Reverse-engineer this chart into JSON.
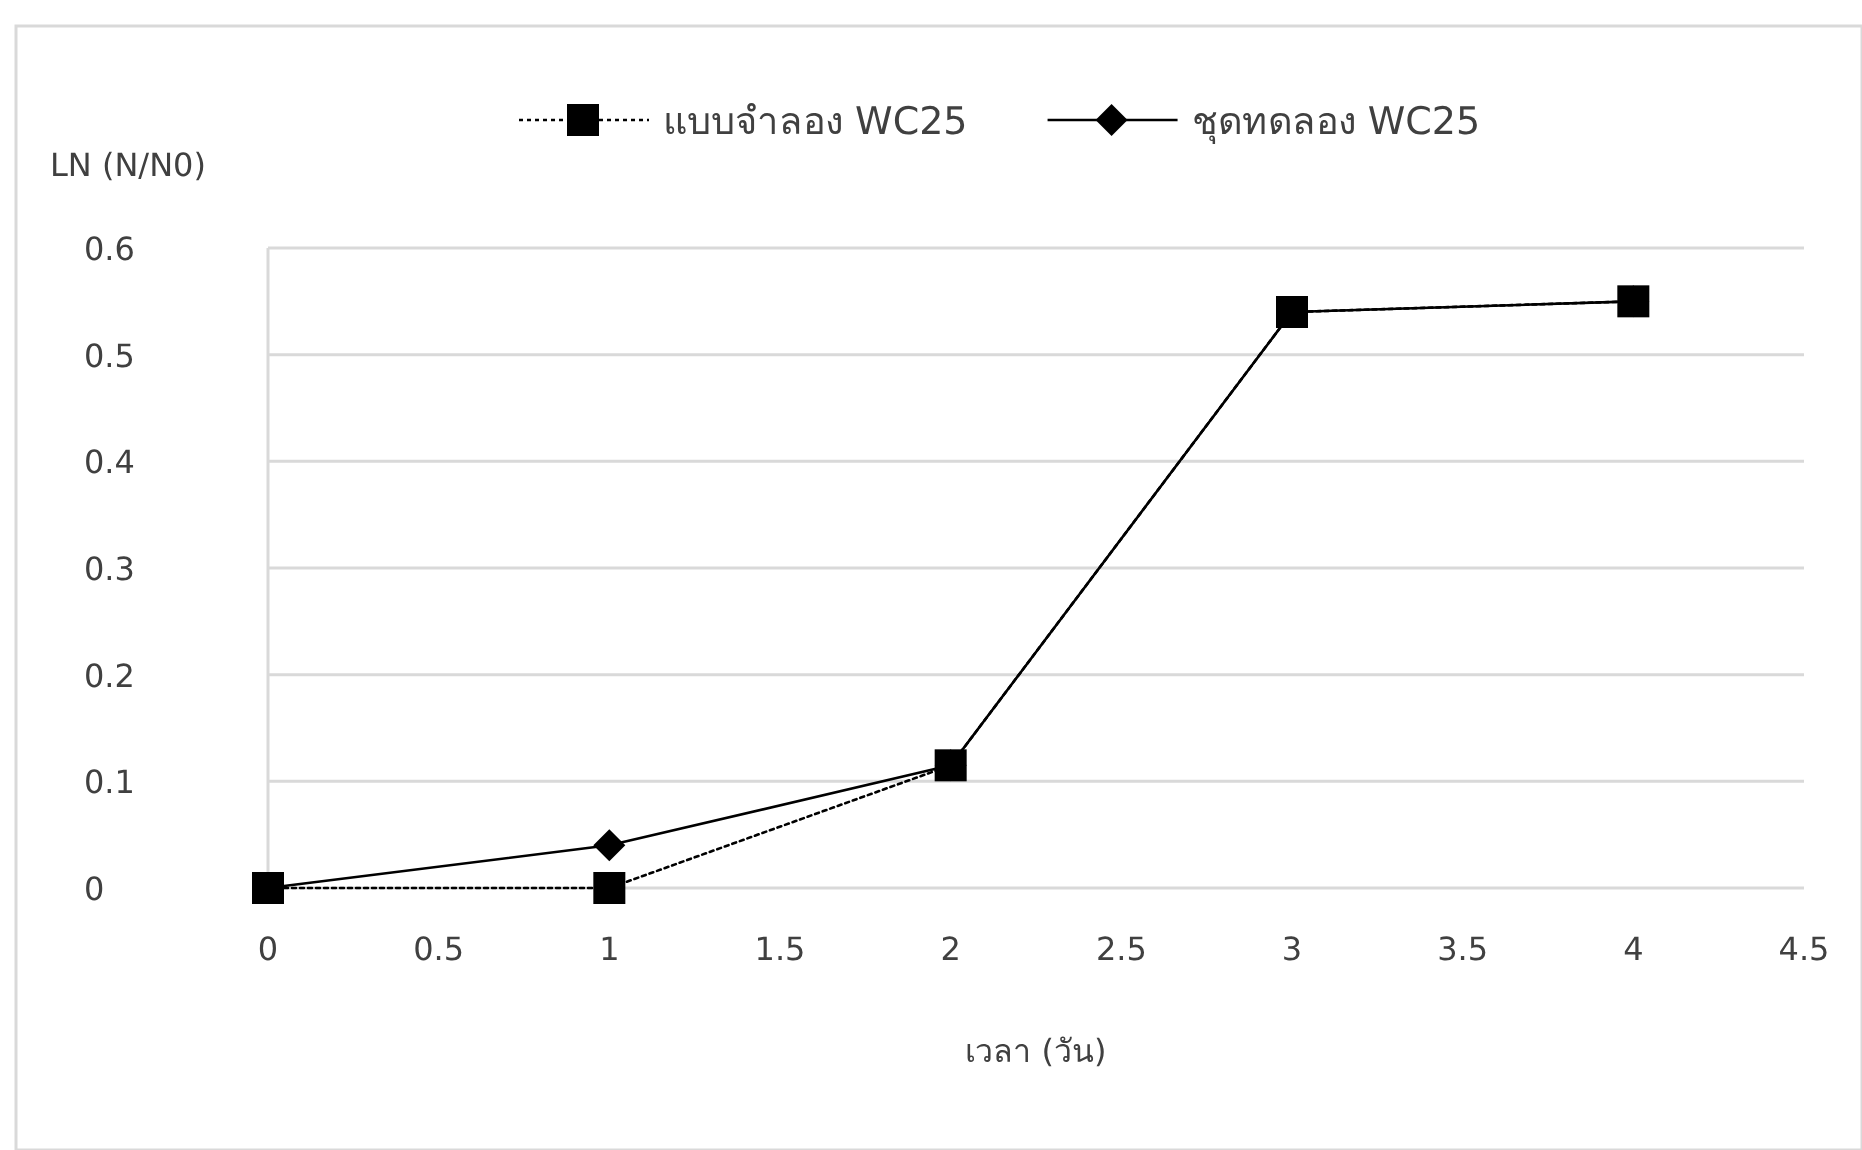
{
  "chart_data": {
    "type": "line",
    "xlabel": "เวลา (วัน)",
    "ylabel": "LN (N/N0)",
    "x": [
      0,
      1,
      2,
      3,
      4
    ],
    "series": [
      {
        "name": "แบบจำลอง WC25",
        "color": "#000000",
        "marker": "square",
        "line_style": "dotted",
        "values": [
          0,
          0,
          0.115,
          0.54,
          0.55
        ]
      },
      {
        "name": "ชุดทดลอง WC25",
        "color": "#000000",
        "marker": "diamond",
        "line_style": "solid",
        "values": [
          0,
          0.04,
          0.115,
          0.54,
          0.55
        ]
      }
    ],
    "xlim": [
      0,
      4.5
    ],
    "xticks": [
      0,
      0.5,
      1,
      1.5,
      2,
      2.5,
      3,
      3.5,
      4,
      4.5
    ],
    "ylim": [
      0,
      0.6
    ],
    "yticks": [
      0,
      0.1,
      0.2,
      0.3,
      0.4,
      0.5,
      0.6
    ],
    "grid": "y",
    "legend": "top"
  }
}
